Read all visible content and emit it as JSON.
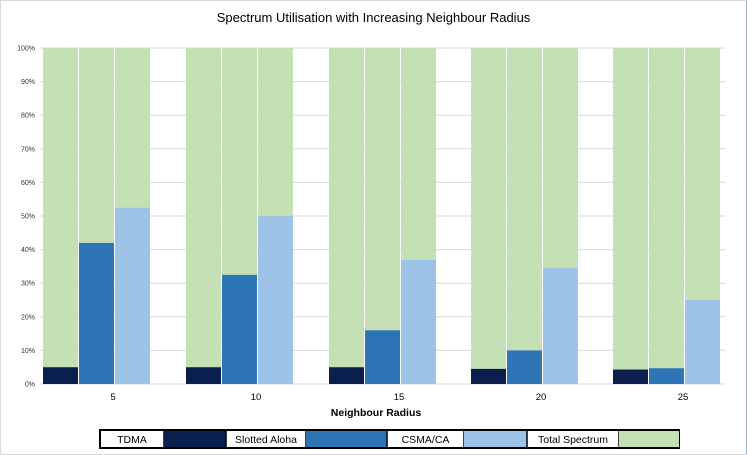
{
  "chart_data": {
    "type": "bar",
    "stacked": true,
    "percent_stacked": true,
    "title": "Spectrum Utilisation with Increasing Neighbour Radius",
    "xlabel": "Neighbour Radius",
    "ylabel": "",
    "ylim": [
      0,
      100
    ],
    "yticks": [
      "0%",
      "10%",
      "20%",
      "30%",
      "40%",
      "50%",
      "60%",
      "70%",
      "80%",
      "90%",
      "100%"
    ],
    "categories": [
      "5",
      "10",
      "15",
      "20",
      "25"
    ],
    "bars_per_group": [
      "TDMA",
      "Slotted Aloha",
      "CSMA/CA"
    ],
    "series": [
      {
        "name": "TDMA",
        "used": [
          5,
          5,
          5,
          4.5,
          4.3
        ]
      },
      {
        "name": "Slotted Aloha",
        "used": [
          42,
          32.5,
          16,
          10,
          4.7
        ]
      },
      {
        "name": "CSMA/CA",
        "used": [
          52.5,
          50,
          37,
          34.5,
          25
        ]
      }
    ],
    "legend": [
      {
        "label": "TDMA",
        "color": "#0a1f4d"
      },
      {
        "label": "Slotted Aloha",
        "color": "#2e75b6"
      },
      {
        "label": "CSMA/CA",
        "color": "#9dc3e6"
      },
      {
        "label": "Total Spectrum",
        "color": "#c5e0b4"
      }
    ],
    "total_color": "#c5e0b4",
    "legend_position": "bottom",
    "grid": true
  }
}
